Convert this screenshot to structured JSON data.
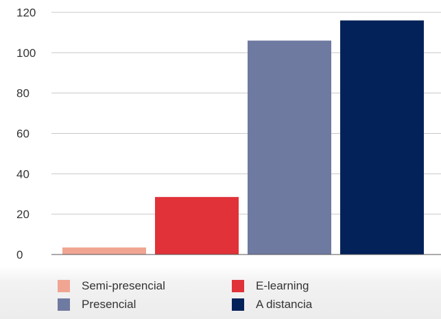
{
  "chart_data": {
    "type": "bar",
    "categories": [
      "Semi-presencial",
      "E-learning",
      "Presencial",
      "A distancia"
    ],
    "values": [
      3.5,
      28.5,
      106,
      116
    ],
    "colors": [
      "#f0a592",
      "#e03238",
      "#6f7aa1",
      "#03225a"
    ],
    "ylim": [
      0,
      120
    ],
    "yticks": [
      "0",
      "20",
      "40",
      "60",
      "80",
      "100",
      "120"
    ],
    "grid": true,
    "legend_position": "bottom",
    "title": "",
    "xlabel": "",
    "ylabel": ""
  },
  "legend": [
    {
      "label": "Semi-presencial",
      "color": "#f0a592"
    },
    {
      "label": "E-learning",
      "color": "#e03238"
    },
    {
      "label": "Presencial",
      "color": "#6f7aa1"
    },
    {
      "label": "A distancia",
      "color": "#03225a"
    }
  ]
}
